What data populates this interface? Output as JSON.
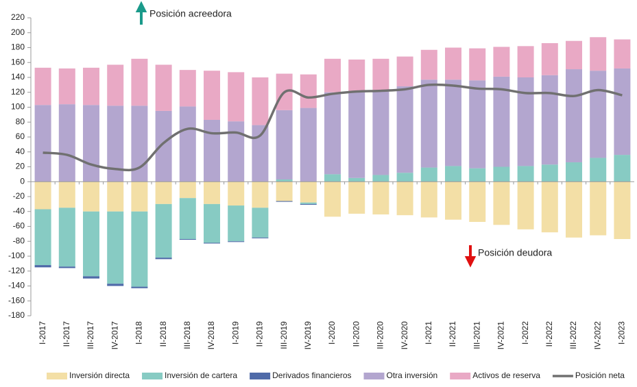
{
  "chart_data": {
    "type": "bar",
    "categories": [
      "I-2017",
      "II-2017",
      "III-2017",
      "IV-2017",
      "I-2018",
      "II-2018",
      "III-2018",
      "IV-2018",
      "I-2019",
      "II-2019",
      "III-2019",
      "IV-2019",
      "I-2020",
      "II-2020",
      "III-2020",
      "IV-2020",
      "I-2021",
      "II-2021",
      "III-2021",
      "IV-2021",
      "I-2022",
      "II-2022",
      "III-2022",
      "IV-2022",
      "I-2023"
    ],
    "series": [
      {
        "name": "Inversión directa",
        "color": "#f3dfa6",
        "type": "bar",
        "values": [
          -37,
          -35,
          -40,
          -40,
          -40,
          -30,
          -22,
          -30,
          -32,
          -35,
          -26,
          -28,
          -47,
          -43,
          -44,
          -45,
          -48,
          -51,
          -54,
          -58,
          -64,
          -68,
          -75,
          -72,
          -77
        ]
      },
      {
        "name": "Inversión de cartera",
        "color": "#87cbc3",
        "type": "bar",
        "values": [
          -75,
          -79,
          -87,
          -97,
          -101,
          -72,
          -55,
          -52,
          -48,
          -40,
          3,
          -2,
          10,
          5,
          9,
          12,
          19,
          21,
          18,
          20,
          21,
          23,
          26,
          32,
          36
        ]
      },
      {
        "name": "Derivados financieros",
        "color": "#4f6aa8",
        "type": "bar",
        "values": [
          -3,
          -2,
          -3,
          -3,
          -2,
          -2,
          -1,
          -1,
          -1,
          -1,
          -1,
          -1,
          0,
          0,
          0,
          0,
          0,
          0,
          0,
          0,
          0,
          0,
          0,
          0,
          0
        ]
      },
      {
        "name": "Otra inversión",
        "color": "#b3a6cf",
        "type": "bar",
        "values": [
          103,
          104,
          103,
          102,
          102,
          95,
          101,
          83,
          81,
          76,
          93,
          99,
          110,
          115,
          113,
          116,
          118,
          116,
          118,
          121,
          119,
          120,
          125,
          117,
          116
        ]
      },
      {
        "name": "Activos de reserva",
        "color": "#e9a9c5",
        "type": "bar",
        "values": [
          50,
          48,
          50,
          55,
          63,
          62,
          49,
          66,
          66,
          64,
          49,
          45,
          45,
          44,
          43,
          40,
          40,
          43,
          43,
          40,
          42,
          43,
          38,
          45,
          39
        ]
      },
      {
        "name": "Posición neta",
        "color": "#707070",
        "type": "line",
        "values": [
          39,
          36,
          23,
          17,
          19,
          52,
          71,
          65,
          66,
          62,
          120,
          113,
          118,
          121,
          122,
          124,
          130,
          129,
          125,
          124,
          119,
          119,
          115,
          123,
          116
        ]
      }
    ],
    "ylim": [
      -180,
      220
    ],
    "yticks": [
      -180,
      -160,
      -140,
      -120,
      -100,
      -80,
      -60,
      -40,
      -20,
      0,
      20,
      40,
      60,
      80,
      100,
      120,
      140,
      160,
      180,
      200,
      220
    ],
    "annotations": [
      "Posición acreedora",
      "Posición deudora"
    ]
  }
}
